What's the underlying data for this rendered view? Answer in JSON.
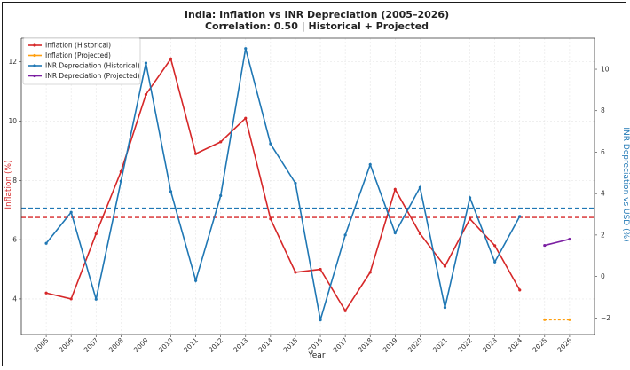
{
  "chart_data": {
    "type": "line",
    "title": "India: Inflation vs INR Depreciation (2005–2026)",
    "subtitle": "Correlation: 0.50 | Historical + Projected",
    "xlabel": "Year",
    "ylabel_left": "Inflation (%)",
    "ylabel_right": "INR Depreciation vs USD (%)",
    "x": [
      2005,
      2006,
      2007,
      2008,
      2009,
      2010,
      2011,
      2012,
      2013,
      2014,
      2015,
      2016,
      2017,
      2018,
      2019,
      2020,
      2021,
      2022,
      2023,
      2024,
      2025,
      2026
    ],
    "x_tick_labels": [
      "2005",
      "2006",
      "2007",
      "2008",
      "2009",
      "2010",
      "2011",
      "2012",
      "2013",
      "2014",
      "2015",
      "2016",
      "2017",
      "2018",
      "2019",
      "2020",
      "2021",
      "2022",
      "2023",
      "2024",
      "2025",
      "2026"
    ],
    "y_left_ticks": [
      4,
      6,
      8,
      10,
      12
    ],
    "y_right_ticks": [
      -2,
      0,
      2,
      4,
      6,
      8,
      10
    ],
    "ylim_left": [
      2.8,
      12.8
    ],
    "ylim_right": [
      -2.8,
      11.5
    ],
    "grid": true,
    "legend_position": "top-left",
    "series": [
      {
        "name": "Inflation (Historical)",
        "axis": "left",
        "color": "#d62728",
        "x": [
          2005,
          2006,
          2007,
          2008,
          2009,
          2010,
          2011,
          2012,
          2013,
          2014,
          2015,
          2016,
          2017,
          2018,
          2019,
          2020,
          2021,
          2022,
          2023,
          2024
        ],
        "values": [
          4.2,
          4.0,
          6.2,
          8.3,
          10.9,
          12.1,
          8.9,
          9.3,
          10.1,
          6.7,
          4.9,
          5.0,
          3.6,
          4.9,
          7.7,
          6.2,
          5.1,
          6.7,
          5.8,
          4.3
        ]
      },
      {
        "name": "Inflation (Projected)",
        "axis": "left",
        "color": "#ff9f0e",
        "x": [
          2025,
          2026
        ],
        "values": [
          3.3,
          3.3
        ]
      },
      {
        "name": "INR Depreciation (Historical)",
        "axis": "right",
        "color": "#1f77b4",
        "x": [
          2005,
          2006,
          2007,
          2008,
          2009,
          2010,
          2011,
          2012,
          2013,
          2014,
          2015,
          2016,
          2017,
          2018,
          2019,
          2020,
          2021,
          2022,
          2023,
          2024
        ],
        "values": [
          1.6,
          3.1,
          -1.1,
          4.6,
          10.3,
          4.1,
          -0.2,
          3.9,
          11.0,
          6.4,
          4.5,
          -2.1,
          2.0,
          5.4,
          2.1,
          4.3,
          -1.5,
          3.8,
          0.7,
          2.9
        ]
      },
      {
        "name": "INR Depreciation (Projected)",
        "axis": "right",
        "color": "#7b1fa2",
        "x": [
          2025,
          2026
        ],
        "values": [
          1.5,
          1.8
        ]
      }
    ],
    "reference_lines": [
      {
        "axis": "left",
        "value": 6.75,
        "color": "#d62728",
        "style": "dashed"
      },
      {
        "axis": "right",
        "value": 3.3,
        "color": "#1f77b4",
        "style": "dashed"
      }
    ]
  }
}
